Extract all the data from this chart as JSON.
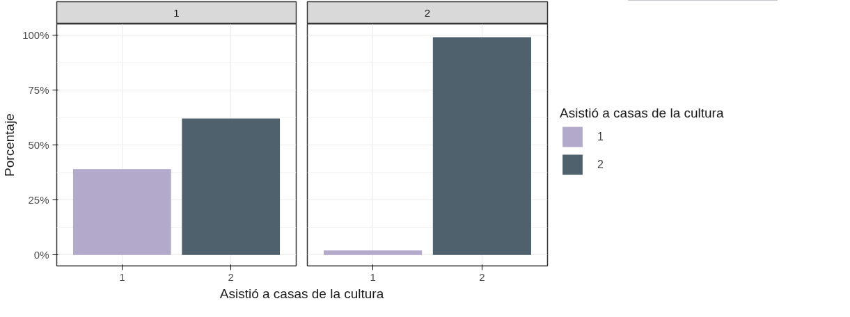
{
  "chart_data": [
    {
      "type": "bar",
      "title": "1",
      "xlabel": "Asistió a casas de la cultura",
      "ylabel": "Porcentaje",
      "categories": [
        "1",
        "2"
      ],
      "legend": "right",
      "legend_title": "Asistió a casas de la cultura",
      "series": [
        {
          "name": "1",
          "color": "#b3a9cb",
          "values": [
            39,
            null
          ]
        },
        {
          "name": "2",
          "color": "#4e616c",
          "values": [
            null,
            62
          ]
        }
      ],
      "ylim": [
        -5,
        105
      ],
      "yticks": [
        {
          "value": 0,
          "label": "0%"
        },
        {
          "value": 25,
          "label": "25%"
        },
        {
          "value": 50,
          "label": "50%"
        },
        {
          "value": 75,
          "label": "75%"
        },
        {
          "value": 100,
          "label": "100%"
        }
      ],
      "grid": true
    },
    {
      "type": "bar",
      "title": "2",
      "categories": [
        "1",
        "2"
      ],
      "series": [
        {
          "color": "#b3a9cb",
          "values": [
            2,
            null
          ]
        },
        {
          "color": "#4e616c",
          "values": [
            null,
            99
          ]
        }
      ],
      "ylim": [
        -5,
        105
      ],
      "yticks": [
        0,
        25,
        50,
        75,
        100
      ],
      "grid": true,
      "tick_labels": "x"
    }
  ]
}
